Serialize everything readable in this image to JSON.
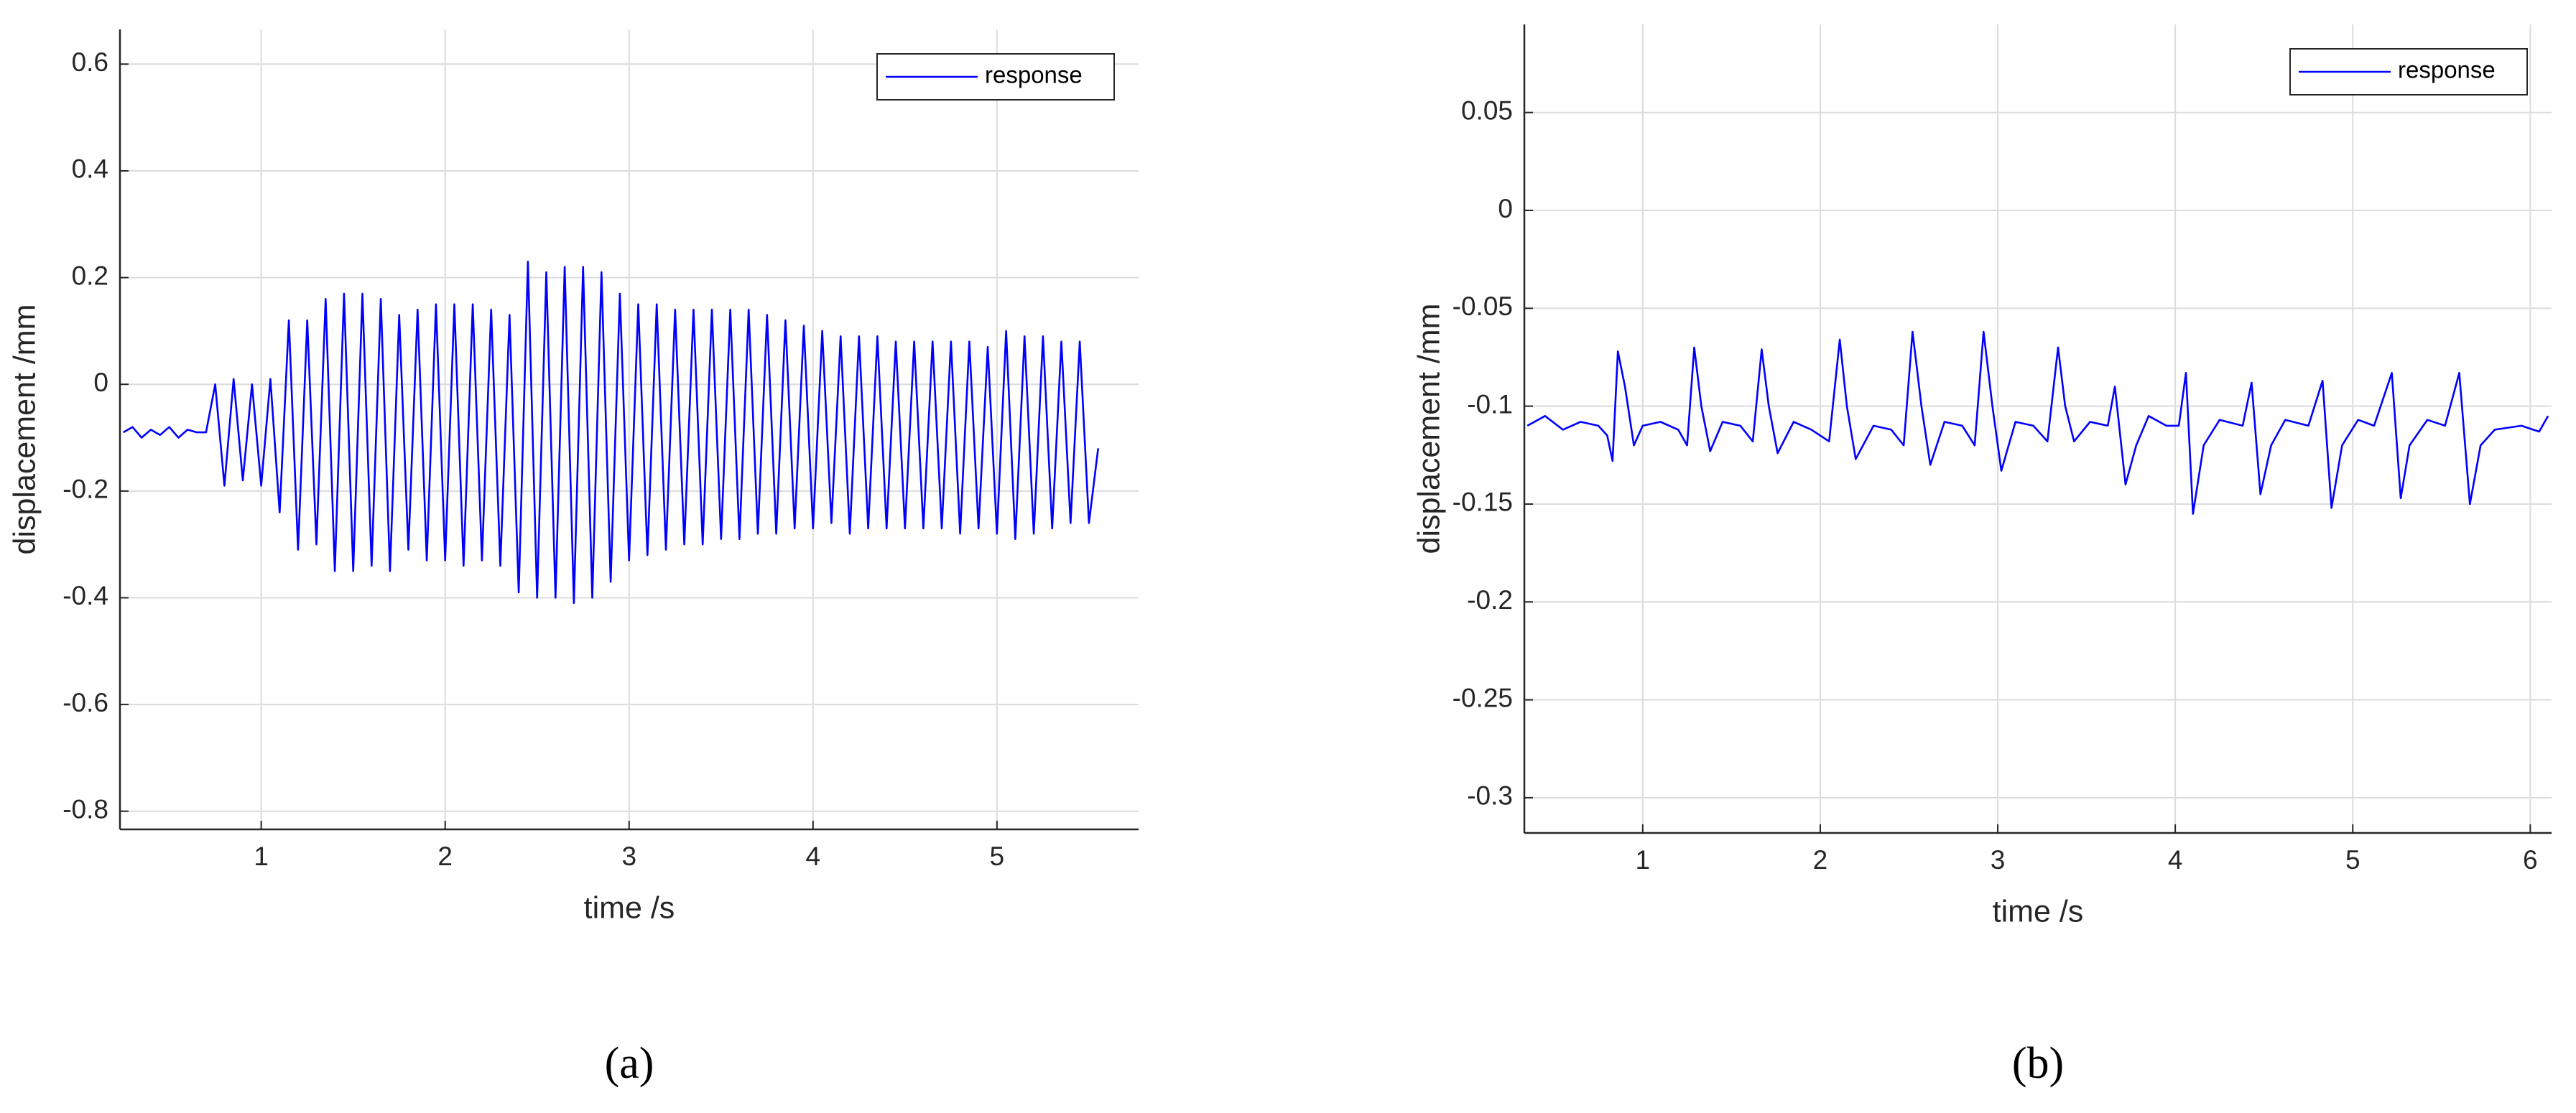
{
  "chart_data": [
    {
      "type": "line",
      "caption": "(a)",
      "xlabel": "time /s",
      "ylabel": "displacement /mm",
      "xlim": [
        0.232,
        5.77
      ],
      "ylim": [
        -0.834,
        0.665
      ],
      "xticks": [
        1,
        2,
        3,
        4,
        5
      ],
      "yticks": [
        -0.8,
        -0.6,
        -0.4,
        -0.2,
        0,
        0.2,
        0.4,
        0.6
      ],
      "grid": true,
      "legend": "upper right",
      "x": [
        0.25,
        0.3,
        0.35,
        0.4,
        0.45,
        0.5,
        0.55,
        0.6,
        0.65,
        0.7,
        0.75,
        0.8,
        0.85,
        0.9,
        0.95,
        1.0,
        1.05,
        1.1,
        1.15,
        1.2,
        1.25,
        1.3,
        1.35,
        1.4,
        1.45,
        1.5,
        1.55,
        1.6,
        1.65,
        1.7,
        1.75,
        1.8,
        1.85,
        1.9,
        1.95,
        2.0,
        2.05,
        2.1,
        2.15,
        2.2,
        2.25,
        2.3,
        2.35,
        2.4,
        2.45,
        2.5,
        2.55,
        2.6,
        2.65,
        2.7,
        2.75,
        2.8,
        2.85,
        2.9,
        2.95,
        3.0,
        3.05,
        3.1,
        3.15,
        3.2,
        3.25,
        3.3,
        3.35,
        3.4,
        3.45,
        3.5,
        3.55,
        3.6,
        3.65,
        3.7,
        3.75,
        3.8,
        3.85,
        3.9,
        3.95,
        4.0,
        4.05,
        4.1,
        4.15,
        4.2,
        4.25,
        4.3,
        4.35,
        4.4,
        4.45,
        4.5,
        4.55,
        4.6,
        4.65,
        4.7,
        4.75,
        4.8,
        4.85,
        4.9,
        4.95,
        5.0,
        5.05,
        5.1,
        5.15,
        5.2,
        5.25,
        5.3,
        5.35,
        5.4,
        5.45,
        5.5,
        5.55
      ],
      "series": [
        {
          "name": "response",
          "color": "#0000ff",
          "values": [
            -0.09,
            -0.08,
            -0.1,
            -0.085,
            -0.095,
            -0.08,
            -0.1,
            -0.085,
            -0.09,
            -0.09,
            0.0,
            -0.19,
            0.01,
            -0.18,
            0.0,
            -0.19,
            0.01,
            -0.24,
            0.12,
            -0.31,
            0.12,
            -0.3,
            0.16,
            -0.35,
            0.17,
            -0.35,
            0.17,
            -0.34,
            0.16,
            -0.35,
            0.13,
            -0.31,
            0.14,
            -0.33,
            0.15,
            -0.33,
            0.15,
            -0.34,
            0.15,
            -0.33,
            0.14,
            -0.34,
            0.13,
            -0.39,
            0.23,
            -0.4,
            0.21,
            -0.4,
            0.22,
            -0.41,
            0.22,
            -0.4,
            0.21,
            -0.37,
            0.17,
            -0.33,
            0.15,
            -0.32,
            0.15,
            -0.31,
            0.14,
            -0.3,
            0.14,
            -0.3,
            0.14,
            -0.29,
            0.14,
            -0.29,
            0.14,
            -0.28,
            0.13,
            -0.28,
            0.12,
            -0.27,
            0.11,
            -0.27,
            0.1,
            -0.26,
            0.09,
            -0.28,
            0.09,
            -0.27,
            0.09,
            -0.27,
            0.08,
            -0.27,
            0.08,
            -0.27,
            0.08,
            -0.27,
            0.08,
            -0.28,
            0.08,
            -0.27,
            0.07,
            -0.28,
            0.1,
            -0.29,
            0.09,
            -0.28,
            0.09,
            -0.27,
            0.08,
            -0.26,
            0.08,
            -0.26,
            -0.12
          ]
        }
      ]
    },
    {
      "type": "line",
      "caption": "(b)",
      "xlabel": "time /s",
      "ylabel": "displacement /mm",
      "xlim": [
        0.333,
        6.12
      ],
      "ylim": [
        -0.318,
        0.095
      ],
      "xticks": [
        1,
        2,
        3,
        4,
        5,
        6
      ],
      "yticks": [
        -0.3,
        -0.25,
        -0.2,
        -0.15,
        -0.1,
        -0.05,
        0,
        0.05
      ],
      "grid": true,
      "legend": "upper right",
      "x": [
        0.35,
        0.45,
        0.55,
        0.65,
        0.75,
        0.8,
        0.83,
        0.86,
        0.9,
        0.95,
        1.0,
        1.1,
        1.2,
        1.25,
        1.29,
        1.33,
        1.38,
        1.45,
        1.55,
        1.62,
        1.67,
        1.71,
        1.76,
        1.85,
        1.95,
        2.05,
        2.11,
        2.15,
        2.2,
        2.3,
        2.4,
        2.47,
        2.52,
        2.57,
        2.62,
        2.7,
        2.8,
        2.87,
        2.92,
        2.97,
        3.02,
        3.1,
        3.2,
        3.28,
        3.34,
        3.38,
        3.43,
        3.52,
        3.62,
        3.66,
        3.72,
        3.78,
        3.85,
        3.95,
        4.02,
        4.06,
        4.1,
        4.16,
        4.25,
        4.38,
        4.43,
        4.48,
        4.54,
        4.62,
        4.75,
        4.83,
        4.88,
        4.94,
        5.03,
        5.12,
        5.22,
        5.27,
        5.32,
        5.42,
        5.52,
        5.6,
        5.66,
        5.72,
        5.8,
        5.95,
        6.05,
        6.1
      ],
      "series": [
        {
          "name": "response",
          "color": "#0000ff",
          "values": [
            -0.11,
            -0.105,
            -0.112,
            -0.108,
            -0.11,
            -0.115,
            -0.128,
            -0.072,
            -0.09,
            -0.12,
            -0.11,
            -0.108,
            -0.112,
            -0.12,
            -0.07,
            -0.1,
            -0.123,
            -0.108,
            -0.11,
            -0.118,
            -0.071,
            -0.1,
            -0.124,
            -0.108,
            -0.112,
            -0.118,
            -0.066,
            -0.1,
            -0.127,
            -0.11,
            -0.112,
            -0.12,
            -0.062,
            -0.1,
            -0.13,
            -0.108,
            -0.11,
            -0.12,
            -0.062,
            -0.1,
            -0.133,
            -0.108,
            -0.11,
            -0.118,
            -0.07,
            -0.1,
            -0.118,
            -0.108,
            -0.11,
            -0.09,
            -0.14,
            -0.12,
            -0.105,
            -0.11,
            -0.11,
            -0.083,
            -0.155,
            -0.12,
            -0.107,
            -0.11,
            -0.088,
            -0.145,
            -0.12,
            -0.107,
            -0.11,
            -0.087,
            -0.152,
            -0.12,
            -0.107,
            -0.11,
            -0.083,
            -0.147,
            -0.12,
            -0.107,
            -0.11,
            -0.083,
            -0.15,
            -0.12,
            -0.112,
            -0.11,
            -0.113,
            -0.105
          ]
        }
      ]
    }
  ]
}
